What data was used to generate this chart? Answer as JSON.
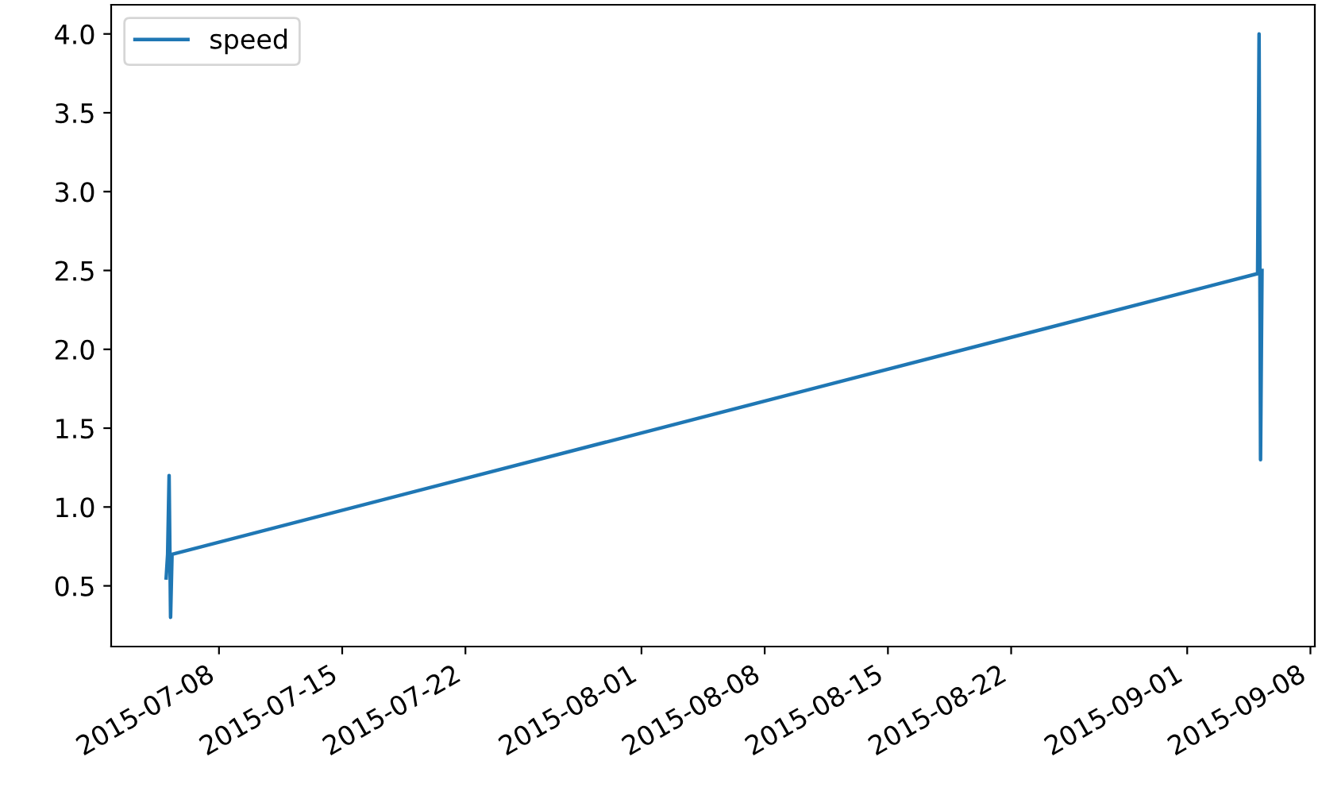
{
  "chart_data": {
    "type": "line",
    "x": [
      "2015-07-05T00:00",
      "2015-07-05T02:00",
      "2015-07-05T04:00",
      "2015-07-05T06:00",
      "2015-07-05T08:00",
      "2015-09-05T00:00",
      "2015-09-05T02:00",
      "2015-09-05T04:00",
      "2015-09-05T06:00"
    ],
    "series": [
      {
        "name": "speed",
        "color": "#1f77b4",
        "values": [
          0.55,
          0.7,
          1.2,
          0.3,
          0.7,
          2.48,
          4.0,
          1.3,
          2.5
        ]
      }
    ],
    "xlim": [
      "2015-07-01T21:00",
      "2015-09-08T06:00"
    ],
    "xticks": [
      {
        "value": "2015-07-08",
        "label": "2015-07-08"
      },
      {
        "value": "2015-07-15",
        "label": "2015-07-15"
      },
      {
        "value": "2015-07-22",
        "label": "2015-07-22"
      },
      {
        "value": "2015-08-01",
        "label": "2015-08-01"
      },
      {
        "value": "2015-08-08",
        "label": "2015-08-08"
      },
      {
        "value": "2015-08-15",
        "label": "2015-08-15"
      },
      {
        "value": "2015-08-22",
        "label": "2015-08-22"
      },
      {
        "value": "2015-09-01",
        "label": "2015-09-01"
      },
      {
        "value": "2015-09-08",
        "label": "2015-09-08"
      }
    ],
    "ylim": [
      0.115,
      4.185
    ],
    "yticks": [
      {
        "value": 0.5,
        "label": "0.5"
      },
      {
        "value": 1.0,
        "label": "1.0"
      },
      {
        "value": 1.5,
        "label": "1.5"
      },
      {
        "value": 2.0,
        "label": "2.0"
      },
      {
        "value": 2.5,
        "label": "2.5"
      },
      {
        "value": 3.0,
        "label": "3.0"
      },
      {
        "value": 3.5,
        "label": "3.5"
      },
      {
        "value": 4.0,
        "label": "4.0"
      }
    ],
    "legend": "top left",
    "grid": false
  }
}
